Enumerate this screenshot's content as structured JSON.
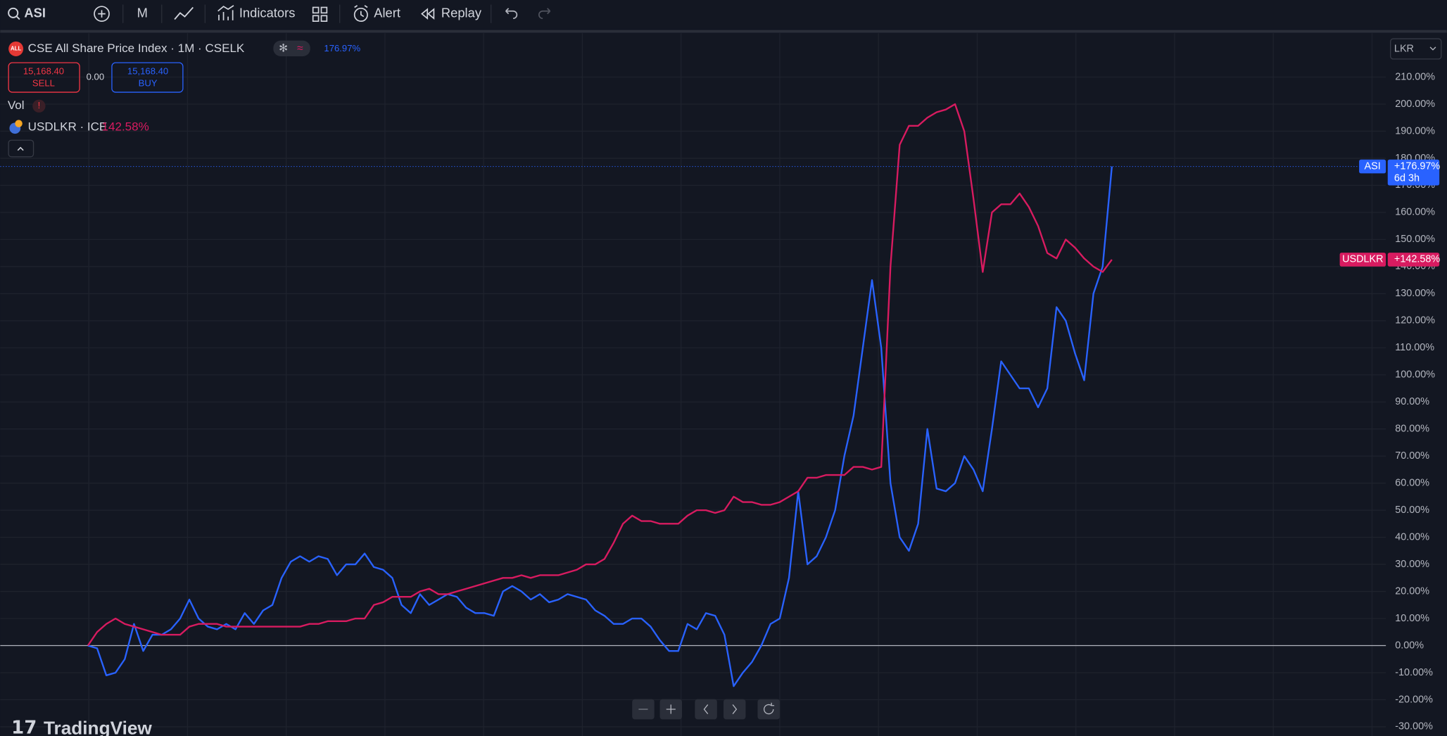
{
  "toolbar": {
    "symbol": "ASI",
    "interval": "M",
    "indicators": "Indicators",
    "alert": "Alert",
    "replay": "Replay"
  },
  "legend": {
    "title": "CSE All Share Price Index · 1M · CSELK",
    "change": "176.97%",
    "sell_price": "15,168.40",
    "sell": "SELL",
    "spread": "0.00",
    "buy_price": "15,168.40",
    "buy": "BUY",
    "volume": "Vol",
    "compare": "USDLKR · ICE",
    "compare_change": "142.58%"
  },
  "currency": "LKR",
  "watermark": "TradingView",
  "chart_data": {
    "type": "line",
    "ylim": [
      -33.4,
      226.2
    ],
    "yticks": [
      {
        "value": -30,
        "label": "-30.00%"
      },
      {
        "value": -20,
        "label": "-20.00%"
      },
      {
        "value": -10,
        "label": "-10.00%"
      },
      {
        "value": 0,
        "label": "0.00%"
      },
      {
        "value": 10,
        "label": "10.00%"
      },
      {
        "value": 20,
        "label": "20.00%"
      },
      {
        "value": 30,
        "label": "30.00%"
      },
      {
        "value": 40,
        "label": "40.00%"
      },
      {
        "value": 50,
        "label": "50.00%"
      },
      {
        "value": 60,
        "label": "60.00%"
      },
      {
        "value": 70,
        "label": "70.00%"
      },
      {
        "value": 80,
        "label": "80.00%"
      },
      {
        "value": 90,
        "label": "90.00%"
      },
      {
        "value": 100,
        "label": "100.00%"
      },
      {
        "value": 110,
        "label": "110.00%"
      },
      {
        "value": 120,
        "label": "120.00%"
      },
      {
        "value": 130,
        "label": "130.00%"
      },
      {
        "value": 140,
        "label": "140.00%"
      },
      {
        "value": 150,
        "label": "150.00%"
      },
      {
        "value": 160,
        "label": "160.00%"
      },
      {
        "value": 170,
        "label": "170.00%"
      },
      {
        "value": 180,
        "label": "180.00%"
      },
      {
        "value": 190,
        "label": "190.00%"
      },
      {
        "value": 200,
        "label": "200.00%"
      },
      {
        "value": 210,
        "label": "210.00%"
      }
    ],
    "grid": true,
    "series": [
      {
        "name": "ASI",
        "color": "#2962ff",
        "last_label": "+176.97%",
        "countdown": "6d 3h",
        "values": [
          0,
          -1,
          -11,
          -10,
          -5,
          8,
          -2,
          4,
          4,
          6,
          10,
          17,
          10,
          7,
          6,
          8,
          6,
          12,
          8,
          13,
          15,
          25,
          31,
          33,
          31,
          33,
          32,
          26,
          30,
          30,
          34,
          29,
          28,
          25,
          15,
          12,
          19,
          15,
          17,
          19,
          18,
          14,
          12,
          12,
          11,
          20,
          22,
          20,
          17,
          19,
          16,
          17,
          19,
          18,
          17,
          13,
          11,
          8,
          8,
          10,
          10,
          7,
          2,
          -2,
          -2,
          8,
          6,
          12,
          11,
          4,
          -15,
          -10,
          -6,
          0,
          8,
          10,
          25,
          57,
          30,
          33,
          40,
          50,
          70,
          85,
          110,
          135,
          110,
          60,
          40,
          35,
          45,
          80,
          58,
          57,
          60,
          70,
          65,
          57,
          80,
          105,
          100,
          95,
          95,
          88,
          95,
          125,
          120,
          108,
          98,
          130,
          140,
          176.97
        ]
      },
      {
        "name": "USDLKR",
        "color": "#d81b60",
        "last_label": "+142.58%",
        "values": [
          0,
          5,
          8,
          10,
          8,
          7,
          6,
          5,
          4,
          4,
          4,
          7,
          8,
          8,
          8,
          7,
          7,
          7,
          7,
          7,
          7,
          7,
          7,
          7,
          8,
          8,
          9,
          9,
          9,
          10,
          10,
          15,
          16,
          18,
          18,
          18,
          20,
          21,
          19,
          19,
          20,
          21,
          22,
          23,
          24,
          25,
          25,
          26,
          25,
          26,
          26,
          26,
          27,
          28,
          30,
          30,
          32,
          38,
          45,
          48,
          46,
          46,
          45,
          45,
          45,
          48,
          50,
          50,
          49,
          50,
          55,
          53,
          53,
          52,
          52,
          53,
          55,
          57,
          62,
          62,
          63,
          63,
          63,
          66,
          66,
          65,
          66,
          140,
          185,
          192,
          192,
          195,
          197,
          198,
          200,
          190,
          165,
          138,
          160,
          163,
          163,
          167,
          162,
          155,
          145,
          143,
          150,
          147,
          143,
          140,
          138,
          142.58
        ]
      }
    ]
  }
}
